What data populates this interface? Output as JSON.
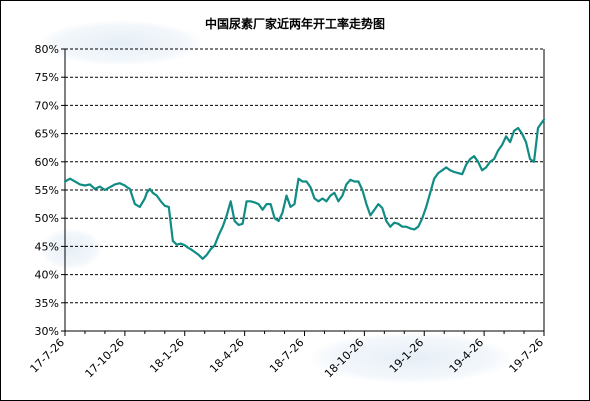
{
  "chart_data": {
    "type": "line",
    "title": "中国尿素厂家近两年开工率走势图",
    "xlabel": "",
    "ylabel": "",
    "ylim": [
      30,
      80
    ],
    "y_ticks": [
      "80%",
      "75%",
      "70%",
      "65%",
      "60%",
      "55%",
      "50%",
      "45%",
      "40%",
      "35%",
      "30%"
    ],
    "x_ticks": [
      "17-7-26",
      "17-10-26",
      "18-1-26",
      "18-4-26",
      "18-7-26",
      "18-10-26",
      "19-1-26",
      "19-4-26",
      "19-7-26"
    ],
    "grid": "horizontal-dashed",
    "legend": "none",
    "series": [
      {
        "color": "#118c84",
        "x_months": [
          0,
          0.25,
          0.5,
          0.75,
          1.0,
          1.25,
          1.5,
          1.75,
          2.0,
          2.25,
          2.5,
          2.75,
          3.0,
          3.1,
          3.25,
          3.5,
          3.75,
          4.0,
          4.1,
          4.25,
          4.4,
          4.6,
          4.8,
          5.0,
          5.2,
          5.4,
          5.6,
          5.8,
          6.0,
          6.15,
          6.3,
          6.5,
          6.7,
          6.9,
          7.1,
          7.3,
          7.5,
          7.7,
          7.9,
          8.1,
          8.3,
          8.5,
          8.7,
          8.9,
          9.1,
          9.3,
          9.5,
          9.7,
          9.9,
          10.1,
          10.3,
          10.5,
          10.7,
          10.9,
          11.1,
          11.3,
          11.5,
          11.7,
          11.9,
          12.1,
          12.3,
          12.5,
          12.7,
          12.9,
          13.1,
          13.3,
          13.5,
          13.7,
          13.9,
          14.1,
          14.3,
          14.5,
          14.7,
          14.9,
          15.1,
          15.3,
          15.5,
          15.7,
          15.9,
          16.1,
          16.3,
          16.5,
          16.7,
          16.9,
          17.1,
          17.3,
          17.5,
          17.7,
          17.9,
          18.1,
          18.3,
          18.5,
          18.7,
          18.9,
          19.1,
          19.3,
          19.5,
          19.7,
          19.9,
          20.1,
          20.3,
          20.5,
          20.7,
          20.9,
          21.1,
          21.3,
          21.5,
          21.7,
          21.9,
          22.1,
          22.3,
          22.5,
          22.7,
          22.9,
          23.1,
          23.3,
          23.5,
          23.7,
          23.9,
          24.0
        ],
        "values": [
          56.5,
          57.0,
          56.5,
          56.0,
          55.8,
          56.0,
          55.2,
          55.6,
          55.0,
          55.5,
          56.0,
          56.2,
          55.8,
          55.5,
          55.2,
          52.5,
          52.0,
          53.5,
          54.5,
          55.2,
          54.5,
          54.0,
          53.0,
          52.2,
          52.0,
          46.0,
          45.3,
          45.5,
          45.2,
          44.8,
          44.5,
          44.0,
          43.5,
          42.8,
          43.5,
          44.5,
          45.2,
          47.0,
          48.5,
          50.5,
          53.0,
          49.5,
          48.8,
          49.0,
          53.0,
          53.0,
          52.8,
          52.5,
          51.5,
          52.5,
          52.5,
          50.0,
          49.5,
          51.0,
          54.0,
          52.0,
          52.5,
          57.0,
          56.5,
          56.5,
          55.5,
          53.5,
          53.0,
          53.5,
          53.0,
          54.0,
          54.5,
          53.0,
          54.0,
          56.0,
          56.8,
          56.5,
          56.5,
          55.0,
          52.5,
          50.5,
          51.5,
          52.5,
          51.8,
          49.5,
          48.5,
          49.2,
          49.0,
          48.5,
          48.5,
          48.2,
          48.0,
          48.5,
          50.0,
          52.0,
          54.5,
          57.0,
          58.0,
          58.5,
          59.0,
          58.5,
          58.2,
          58.0,
          57.8,
          59.5,
          60.5,
          61.0,
          60.0,
          58.5,
          59.0,
          60.0,
          60.5,
          62.0,
          63.0,
          64.5,
          63.5,
          65.5,
          66.0,
          65.0,
          63.5,
          60.5,
          60.0,
          66.0,
          67.0,
          67.5
        ]
      }
    ]
  }
}
